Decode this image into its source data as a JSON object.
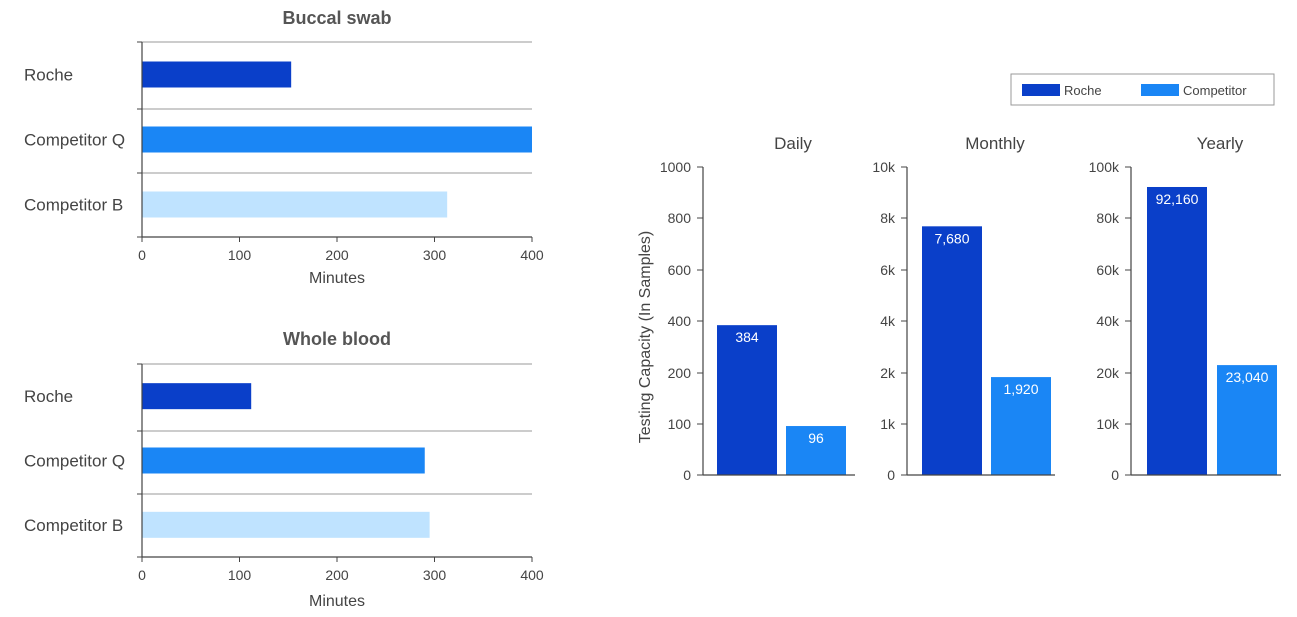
{
  "colors": {
    "roche": "#0a3fc9",
    "competitor": "#1a86f5",
    "competitor_b": "#bfe3ff",
    "axis": "#444444",
    "grid": "#9a9a9a",
    "text": "#444444",
    "title": "#555555"
  },
  "chart_data": [
    {
      "type": "bar",
      "orientation": "horizontal",
      "title": "Buccal swab",
      "xlabel": "Minutes",
      "ylabel": "",
      "categories": [
        "Roche",
        "Competitor Q",
        "Competitor B"
      ],
      "values": [
        153,
        400,
        313
      ],
      "xlim": [
        0,
        400
      ],
      "xticks": [
        "0",
        "100",
        "200",
        "300",
        "400"
      ]
    },
    {
      "type": "bar",
      "orientation": "horizontal",
      "title": "Whole blood",
      "xlabel": "Minutes",
      "ylabel": "",
      "categories": [
        "Roche",
        "Competitor Q",
        "Competitor B"
      ],
      "values": [
        112,
        290,
        295
      ],
      "xlim": [
        0,
        400
      ],
      "xticks": [
        "0",
        "100",
        "200",
        "300",
        "400"
      ]
    },
    {
      "type": "bar",
      "title": "Daily",
      "ylabel": "Testing Capacity (In Samples)",
      "series": [
        {
          "name": "Roche",
          "values": [
            384
          ],
          "labels": [
            "384"
          ]
        },
        {
          "name": "Competitor",
          "values": [
            96
          ],
          "labels": [
            "96"
          ]
        }
      ],
      "y_scale": "custom-piecewise",
      "yticks": [
        {
          "label": "0",
          "value": 0
        },
        {
          "label": "100",
          "value": 100
        },
        {
          "label": "200",
          "value": 200
        },
        {
          "label": "400",
          "value": 400
        },
        {
          "label": "600",
          "value": 600
        },
        {
          "label": "800",
          "value": 800
        },
        {
          "label": "1000",
          "value": 1000
        }
      ]
    },
    {
      "type": "bar",
      "title": "Monthly",
      "ylabel": "",
      "series": [
        {
          "name": "Roche",
          "values": [
            7680
          ],
          "labels": [
            "7,680"
          ]
        },
        {
          "name": "Competitor",
          "values": [
            1920
          ],
          "labels": [
            "1,920"
          ]
        }
      ],
      "y_scale": "custom-piecewise",
      "yticks": [
        {
          "label": "0",
          "value": 0
        },
        {
          "label": "1k",
          "value": 1000
        },
        {
          "label": "2k",
          "value": 2000
        },
        {
          "label": "4k",
          "value": 4000
        },
        {
          "label": "6k",
          "value": 6000
        },
        {
          "label": "8k",
          "value": 8000
        },
        {
          "label": "10k",
          "value": 10000
        }
      ]
    },
    {
      "type": "bar",
      "title": "Yearly",
      "ylabel": "",
      "series": [
        {
          "name": "Roche",
          "values": [
            92160
          ],
          "labels": [
            "92,160"
          ]
        },
        {
          "name": "Competitor",
          "values": [
            23040
          ],
          "labels": [
            "23,040"
          ]
        }
      ],
      "y_scale": "custom-piecewise",
      "yticks": [
        {
          "label": "0",
          "value": 0
        },
        {
          "label": "10k",
          "value": 10000
        },
        {
          "label": "20k",
          "value": 20000
        },
        {
          "label": "40k",
          "value": 40000
        },
        {
          "label": "60k",
          "value": 60000
        },
        {
          "label": "80k",
          "value": 80000
        },
        {
          "label": "100k",
          "value": 100000
        }
      ]
    }
  ],
  "legend": {
    "placement": "top-right",
    "items": [
      {
        "label": "Roche",
        "color_key": "roche"
      },
      {
        "label": "Competitor",
        "color_key": "competitor"
      }
    ]
  }
}
